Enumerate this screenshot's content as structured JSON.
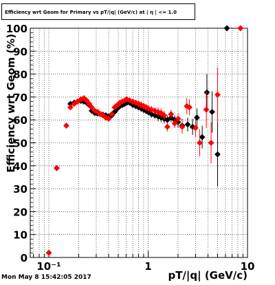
{
  "title": "Efficiency wrt Geom for Primary vs pT/|q| (GeV/c) at | η | <= 1.0",
  "footer": "Mon May  8 15:42:05 2017",
  "chart_data": {
    "type": "scatter",
    "xlabel": "pT/|q| (GeV/c)",
    "ylabel": "Efficiency wrt Geom (%)",
    "xscale": "log",
    "xlim": [
      0.065,
      10
    ],
    "ylim": [
      0,
      100
    ],
    "x_ticks": [
      {
        "value": 0.1,
        "label": "10⁻¹"
      },
      {
        "value": 1,
        "label": "1"
      },
      {
        "value": 10,
        "label": "10"
      }
    ],
    "y_ticks": [
      0,
      10,
      20,
      30,
      40,
      50,
      60,
      70,
      80,
      90,
      100
    ],
    "grid": true,
    "series": [
      {
        "color": "#000000",
        "marker": "diamond",
        "points": [
          [
            0.1,
            2.0,
            0.0
          ],
          [
            0.12,
            39.0,
            0.0
          ],
          [
            0.165,
            67.0,
            1.2
          ],
          [
            0.18,
            67.5,
            1.2
          ],
          [
            0.195,
            68.0,
            1.2
          ],
          [
            0.21,
            68.3,
            1.2
          ],
          [
            0.225,
            68.0,
            1.2
          ],
          [
            0.24,
            67.5,
            1.2
          ],
          [
            0.255,
            66.5,
            1.2
          ],
          [
            0.27,
            64.0,
            1.2
          ],
          [
            0.29,
            63.0,
            1.2
          ],
          [
            0.31,
            62.8,
            1.2
          ],
          [
            0.33,
            62.5,
            1.2
          ],
          [
            0.35,
            62.3,
            1.2
          ],
          [
            0.375,
            62.0,
            1.2
          ],
          [
            0.4,
            61.5,
            1.2
          ],
          [
            0.43,
            62.0,
            1.2
          ],
          [
            0.46,
            63.5,
            1.2
          ],
          [
            0.49,
            65.0,
            1.2
          ],
          [
            0.52,
            66.0,
            1.2
          ],
          [
            0.55,
            66.5,
            1.2
          ],
          [
            0.58,
            67.0,
            1.2
          ],
          [
            0.61,
            67.5,
            1.2
          ],
          [
            0.65,
            67.5,
            1.2
          ],
          [
            0.7,
            66.5,
            1.2
          ],
          [
            0.75,
            66.0,
            1.2
          ],
          [
            0.8,
            65.5,
            1.2
          ],
          [
            0.85,
            65.0,
            1.5
          ],
          [
            0.9,
            64.5,
            1.5
          ],
          [
            0.95,
            64.0,
            1.5
          ],
          [
            1.0,
            63.5,
            1.5
          ],
          [
            1.08,
            62.5,
            1.5
          ],
          [
            1.17,
            62.0,
            1.5
          ],
          [
            1.26,
            61.5,
            2.0
          ],
          [
            1.35,
            61.0,
            2.0
          ],
          [
            1.45,
            60.5,
            2.0
          ],
          [
            1.56,
            60.0,
            2.0
          ],
          [
            1.7,
            61.0,
            2.0
          ],
          [
            1.85,
            60.0,
            2.0
          ],
          [
            2.0,
            59.0,
            2.5
          ],
          [
            2.2,
            57.5,
            3.0
          ],
          [
            2.5,
            58.0,
            3.0
          ],
          [
            2.8,
            57.0,
            3.5
          ],
          [
            3.1,
            61.0,
            4.0
          ],
          [
            3.5,
            52.5,
            5.0
          ],
          [
            3.9,
            72.0,
            8.0
          ],
          [
            4.4,
            63.5,
            9.0
          ],
          [
            5.0,
            45.0,
            14.0
          ],
          [
            6.2,
            100.0,
            0.0
          ]
        ]
      },
      {
        "color": "#ff0000",
        "marker": "diamond",
        "points": [
          [
            0.1,
            2.0,
            0.0
          ],
          [
            0.12,
            39.0,
            0.0
          ],
          [
            0.15,
            57.5,
            0.0
          ],
          [
            0.165,
            65.5,
            1.2
          ],
          [
            0.18,
            67.0,
            1.2
          ],
          [
            0.195,
            68.0,
            1.2
          ],
          [
            0.21,
            69.0,
            1.2
          ],
          [
            0.225,
            69.5,
            1.2
          ],
          [
            0.24,
            68.5,
            1.2
          ],
          [
            0.255,
            67.0,
            1.2
          ],
          [
            0.27,
            65.5,
            1.2
          ],
          [
            0.29,
            64.0,
            1.2
          ],
          [
            0.31,
            63.5,
            1.2
          ],
          [
            0.33,
            62.5,
            1.2
          ],
          [
            0.35,
            62.0,
            1.2
          ],
          [
            0.375,
            61.0,
            1.2
          ],
          [
            0.4,
            60.5,
            1.2
          ],
          [
            0.43,
            62.5,
            1.2
          ],
          [
            0.46,
            65.5,
            1.2
          ],
          [
            0.49,
            66.5,
            1.2
          ],
          [
            0.52,
            67.5,
            1.2
          ],
          [
            0.55,
            68.0,
            1.2
          ],
          [
            0.58,
            68.5,
            1.2
          ],
          [
            0.61,
            69.0,
            1.2
          ],
          [
            0.65,
            68.5,
            1.2
          ],
          [
            0.7,
            68.0,
            1.2
          ],
          [
            0.75,
            67.5,
            1.2
          ],
          [
            0.8,
            67.0,
            1.5
          ],
          [
            0.85,
            66.5,
            1.5
          ],
          [
            0.9,
            66.0,
            1.5
          ],
          [
            0.95,
            65.5,
            1.5
          ],
          [
            1.0,
            65.0,
            1.5
          ],
          [
            1.08,
            64.5,
            1.5
          ],
          [
            1.17,
            64.0,
            1.5
          ],
          [
            1.26,
            63.5,
            2.0
          ],
          [
            1.35,
            63.0,
            2.0
          ],
          [
            1.45,
            62.0,
            2.0
          ],
          [
            1.56,
            57.0,
            2.0
          ],
          [
            1.7,
            62.5,
            2.0
          ],
          [
            1.85,
            58.5,
            2.0
          ],
          [
            2.0,
            60.5,
            2.5
          ],
          [
            2.2,
            57.0,
            3.0
          ],
          [
            2.45,
            66.0,
            3.5
          ],
          [
            2.6,
            65.5,
            3.5
          ],
          [
            3.0,
            56.5,
            4.0
          ],
          [
            3.3,
            50.0,
            6.0
          ],
          [
            3.85,
            64.5,
            8.0
          ],
          [
            4.3,
            50.0,
            9.0
          ],
          [
            5.0,
            71.0,
            12.0
          ],
          [
            8.5,
            100.0,
            0.0
          ]
        ]
      }
    ]
  }
}
